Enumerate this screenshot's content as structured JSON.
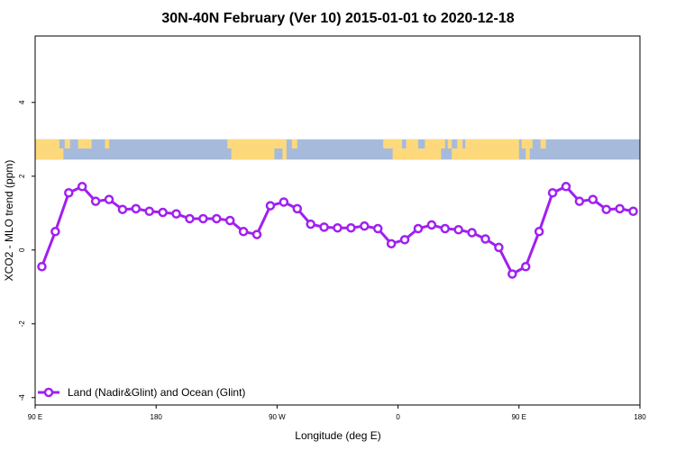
{
  "chart_data": {
    "type": "line",
    "title": "30N-40N February (Ver 10)   2015-01-01 to 2020-12-18",
    "xlabel": "Longitude (deg E)",
    "ylabel": "XCO2 - MLO trend (ppm)",
    "xlim": [
      90,
      540
    ],
    "ylim": [
      -4.2,
      5.8
    ],
    "x_ticks": [
      {
        "value": 90,
        "label": "90 E"
      },
      {
        "value": 180,
        "label": "180"
      },
      {
        "value": 270,
        "label": "90 W"
      },
      {
        "value": 360,
        "label": "0"
      },
      {
        "value": 450,
        "label": "90 E"
      },
      {
        "value": 540,
        "label": "180"
      }
    ],
    "y_ticks": [
      {
        "value": -4,
        "label": "-4"
      },
      {
        "value": -2,
        "label": "-2"
      },
      {
        "value": 0,
        "label": "0"
      },
      {
        "value": 2,
        "label": "2"
      },
      {
        "value": 4,
        "label": "4"
      }
    ],
    "grid": false,
    "legend_position": "bottom-left",
    "map_band": {
      "ymin": 2.45,
      "ymax": 3.0,
      "ocean_color": "#a6bbdb",
      "land_color": "#fdd97b"
    },
    "series": [
      {
        "name": "Land (Nadir&Glint) and Ocean (Glint)",
        "color": "#a020f0",
        "x": [
          95,
          105,
          115,
          125,
          135,
          145,
          155,
          165,
          175,
          185,
          195,
          205,
          215,
          225,
          235,
          245,
          255,
          265,
          275,
          285,
          295,
          305,
          315,
          325,
          335,
          345,
          355,
          365,
          375,
          385,
          395,
          405,
          415,
          425,
          435,
          445,
          455,
          465,
          475,
          485,
          495,
          505,
          515,
          525,
          535
        ],
        "values": [
          -0.45,
          0.5,
          1.55,
          1.72,
          1.32,
          1.37,
          1.1,
          1.12,
          1.05,
          1.02,
          0.98,
          0.85,
          0.85,
          0.85,
          0.8,
          0.5,
          0.42,
          1.2,
          1.3,
          1.12,
          0.7,
          0.62,
          0.6,
          0.6,
          0.65,
          0.58,
          0.17,
          0.28,
          0.58,
          0.68,
          0.58,
          0.55,
          0.47,
          0.3,
          0.07,
          -0.65,
          -0.45,
          0.5,
          1.55,
          1.72,
          1.32,
          1.37,
          1.1,
          1.12,
          1.05
        ]
      }
    ]
  }
}
